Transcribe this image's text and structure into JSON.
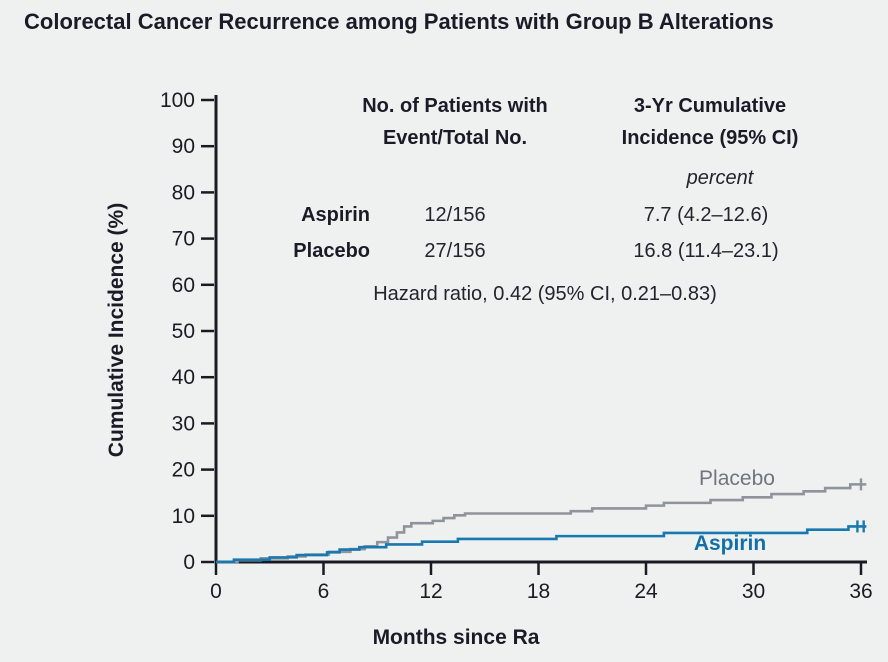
{
  "title": "Colorectal Cancer Recurrence among Patients with Group B Alterations",
  "stats": {
    "col1_header": [
      "No. of Patients with",
      "Event/Total No."
    ],
    "col2_header": [
      "3-Yr Cumulative",
      "Incidence (95% CI)"
    ],
    "unit": "percent",
    "rows": [
      {
        "name": "Aspirin",
        "events": "12/156",
        "incidence": "7.7 (4.2–12.6)"
      },
      {
        "name": "Placebo",
        "events": "27/156",
        "incidence": "16.8 (11.4–23.1)"
      }
    ],
    "hazard": "Hazard ratio, 0.42 (95% CI, 0.21–0.83)"
  },
  "chart_data": {
    "type": "line",
    "variant": "cumulative-incidence-step",
    "title": "Colorectal Cancer Recurrence among Patients with Group B Alterations",
    "xlabel": "Months since Ra",
    "ylabel": "Cumulative Incidence (%)",
    "xlim": [
      0,
      36
    ],
    "ylim": [
      0,
      100
    ],
    "xticks": [
      0,
      6,
      12,
      18,
      24,
      30,
      36
    ],
    "yticks": [
      0,
      10,
      20,
      30,
      40,
      50,
      60,
      70,
      80,
      90,
      100
    ],
    "axis_color": "#1a1a22",
    "grid": false,
    "legend_position": "inline-right",
    "series": [
      {
        "name": "Placebo",
        "color": "#8f949c",
        "label_color": "#6f7580",
        "end_time": 36.3,
        "censor_times": [
          36.0
        ],
        "steps": [
          [
            1.2,
            0.4
          ],
          [
            2.5,
            0.8
          ],
          [
            4.0,
            1.2
          ],
          [
            5.0,
            1.6
          ],
          [
            6.3,
            2.2
          ],
          [
            7.5,
            2.8
          ],
          [
            8.3,
            3.4
          ],
          [
            9.0,
            4.3
          ],
          [
            9.6,
            5.3
          ],
          [
            10.1,
            6.4
          ],
          [
            10.5,
            7.7
          ],
          [
            10.9,
            8.4
          ],
          [
            12.1,
            8.9
          ],
          [
            12.7,
            9.5
          ],
          [
            13.3,
            10.1
          ],
          [
            13.9,
            10.5
          ],
          [
            19.8,
            11.0
          ],
          [
            21.0,
            11.6
          ],
          [
            24.0,
            12.2
          ],
          [
            25.0,
            12.8
          ],
          [
            27.6,
            13.4
          ],
          [
            29.4,
            14.0
          ],
          [
            31.0,
            14.7
          ],
          [
            32.8,
            15.3
          ],
          [
            34.0,
            16.0
          ],
          [
            35.4,
            16.8
          ]
        ]
      },
      {
        "name": "Aspirin",
        "color": "#1878b0",
        "label_color": "#146fa6",
        "end_time": 36.3,
        "censor_times": [
          35.8,
          36.15
        ],
        "steps": [
          [
            1.0,
            0.5
          ],
          [
            3.0,
            1.0
          ],
          [
            4.5,
            1.5
          ],
          [
            6.2,
            2.1
          ],
          [
            6.9,
            2.7
          ],
          [
            8.0,
            3.2
          ],
          [
            9.5,
            3.8
          ],
          [
            11.5,
            4.4
          ],
          [
            13.5,
            5.0
          ],
          [
            19.0,
            5.6
          ],
          [
            25.0,
            6.3
          ],
          [
            33.0,
            7.0
          ],
          [
            35.3,
            7.7
          ]
        ]
      }
    ]
  }
}
